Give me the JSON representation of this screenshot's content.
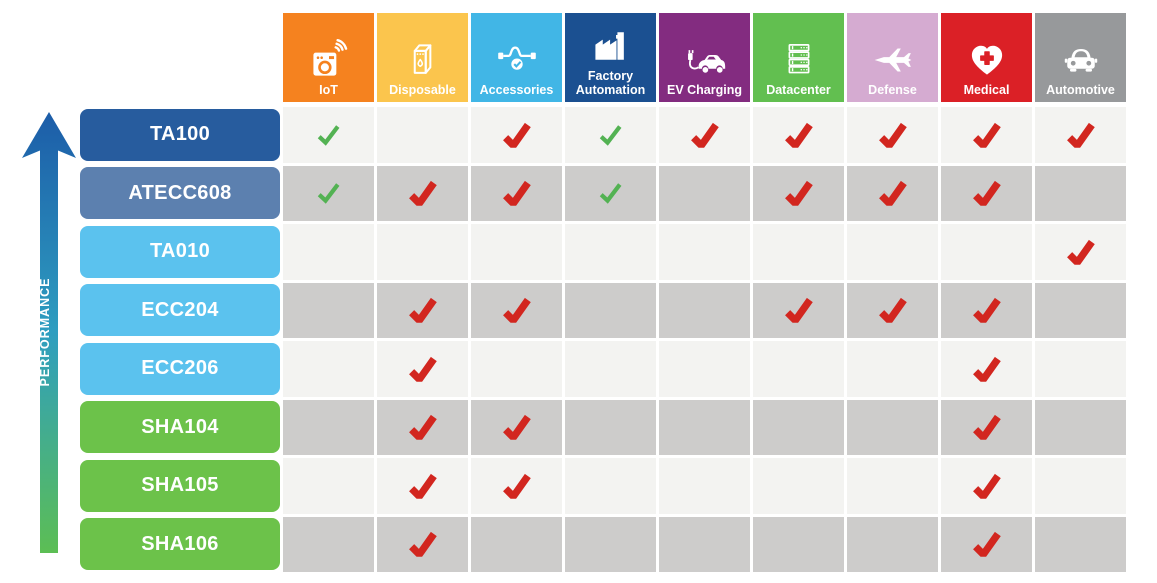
{
  "performance_label": "PERFORMANCE",
  "columns": [
    {
      "label": "IoT",
      "color": "#F5821F",
      "icon": "iot-icon"
    },
    {
      "label": "Disposable",
      "color": "#FBC54D",
      "icon": "disposable-icon"
    },
    {
      "label": "Accessories",
      "color": "#41B6E6",
      "icon": "accessories-cable-icon"
    },
    {
      "label": "Factory Automation",
      "color": "#1B5091",
      "icon": "factory-icon"
    },
    {
      "label": "EV Charging",
      "color": "#832C80",
      "icon": "ev-charging-car-icon"
    },
    {
      "label": "Datacenter",
      "color": "#62BF50",
      "icon": "datacenter-servers-icon"
    },
    {
      "label": "Defense",
      "color": "#D5ABD1",
      "icon": "defense-jet-icon"
    },
    {
      "label": "Medical",
      "color": "#DB2026",
      "icon": "medical-heart-cross-icon"
    },
    {
      "label": "Automotive",
      "color": "#97999B",
      "icon": "automotive-car-icon"
    }
  ],
  "rows": [
    {
      "label": "TA100",
      "color": "#275C9E",
      "checks": [
        "green",
        "",
        "red",
        "green",
        "red",
        "red",
        "red",
        "red",
        "red"
      ]
    },
    {
      "label": "ATECC608",
      "color": "#5C80AF",
      "checks": [
        "green",
        "red",
        "red",
        "green",
        "",
        "red",
        "red",
        "red",
        ""
      ]
    },
    {
      "label": "TA010",
      "color": "#5BC2EE",
      "checks": [
        "",
        "",
        "",
        "",
        "",
        "",
        "",
        "",
        "red"
      ]
    },
    {
      "label": "ECC204",
      "color": "#5BC2EE",
      "checks": [
        "",
        "red",
        "red",
        "",
        "",
        "red",
        "red",
        "red",
        ""
      ]
    },
    {
      "label": "ECC206",
      "color": "#5BC2EE",
      "checks": [
        "",
        "red",
        "",
        "",
        "",
        "",
        "",
        "red",
        ""
      ]
    },
    {
      "label": "SHA104",
      "color": "#6CC24A",
      "checks": [
        "",
        "red",
        "red",
        "",
        "",
        "",
        "",
        "red",
        ""
      ]
    },
    {
      "label": "SHA105",
      "color": "#6CC24A",
      "checks": [
        "",
        "red",
        "red",
        "",
        "",
        "",
        "",
        "red",
        ""
      ]
    },
    {
      "label": "SHA106",
      "color": "#6CC24A",
      "checks": [
        "",
        "red",
        "",
        "",
        "",
        "",
        "",
        "red",
        ""
      ]
    }
  ],
  "styles": {
    "row_light": "#F3F3F1",
    "row_dark": "#CDCCCB",
    "check_colors": {
      "green": "#53B253",
      "red": "#D2261F"
    },
    "arrow_gradient": {
      "bottom": "#5CBE54",
      "mid": "#2E9EC0",
      "top": "#1C5CA8"
    }
  }
}
